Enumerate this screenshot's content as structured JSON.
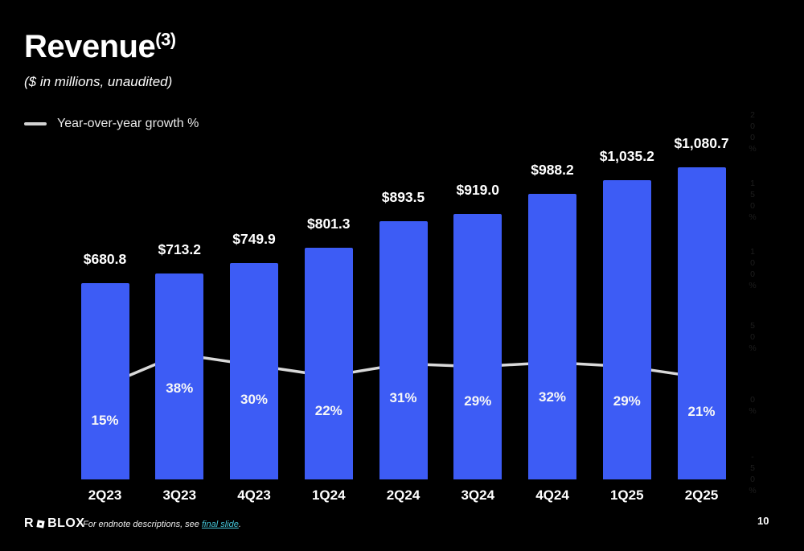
{
  "header": {
    "title": "Revenue",
    "title_superscript": "(3)",
    "subtitle": "($ in millions, unaudited)",
    "legend": {
      "label": "Year-over-year growth %"
    }
  },
  "footer": {
    "logo_prefix": "R",
    "logo_suffix": "BLOX",
    "endnote_text": "For endnote descriptions, see ",
    "endnote_link": "final slide",
    "endnote_period": ".",
    "page_number": "10"
  },
  "chart_data": {
    "type": "bar",
    "title": "Revenue ($ in millions, unaudited)",
    "categories": [
      "2Q23",
      "3Q23",
      "4Q23",
      "1Q24",
      "2Q24",
      "3Q24",
      "4Q24",
      "1Q25",
      "2Q25"
    ],
    "series": [
      {
        "name": "Revenue",
        "type": "bar",
        "values": [
          680.8,
          713.2,
          749.9,
          801.3,
          893.5,
          919.0,
          988.2,
          1035.2,
          1080.7
        ],
        "labels": [
          "$680.8",
          "$713.2",
          "$749.9",
          "$801.3",
          "$893.5",
          "$919.0",
          "$988.2",
          "$1,035.2",
          "$1,080.7"
        ]
      },
      {
        "name": "Year-over-year growth %",
        "type": "line",
        "values": [
          15,
          38,
          30,
          22,
          31,
          29,
          32,
          29,
          21
        ],
        "labels": [
          "15%",
          "38%",
          "30%",
          "22%",
          "31%",
          "29%",
          "32%",
          "29%",
          "21%"
        ]
      }
    ],
    "right_axis": {
      "tick_values": [
        200,
        150,
        100,
        50,
        0,
        -50
      ],
      "tick_labels": [
        "200%",
        "150%",
        "100%",
        "50%",
        "0%",
        "-50%"
      ]
    },
    "legend_position": "top-left",
    "grid": false,
    "colors": {
      "background": "#000000",
      "bar": "#3D5CF5",
      "line": "#D9D9D9",
      "text": "#FFFFFF",
      "link": "#45C6D8",
      "faint_axis": "#1E1E1E"
    }
  }
}
